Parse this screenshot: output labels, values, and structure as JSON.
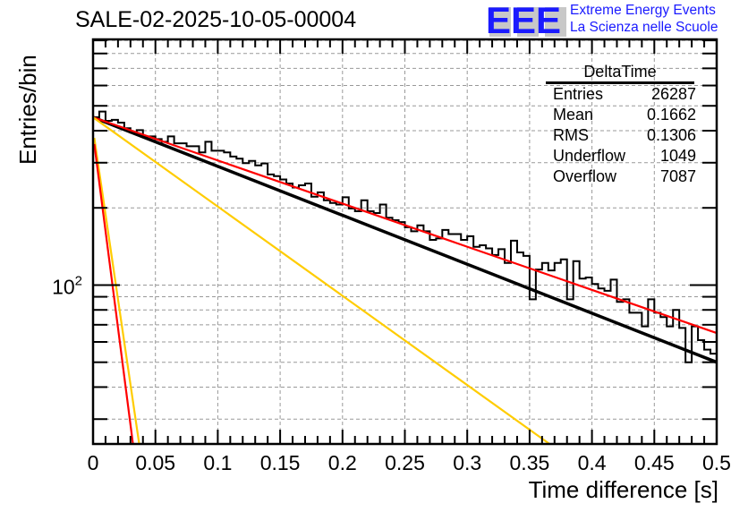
{
  "header": {
    "title": "SALE-02-2025-10-05-00004",
    "logo_letters": "EEE",
    "logo_line1": "Extreme Energy Events",
    "logo_line2": "La Scienza nelle Scuole"
  },
  "stats_box": {
    "title": "DeltaTime",
    "rows": [
      {
        "label": "Entries",
        "value": "26287"
      },
      {
        "label": "Mean",
        "value": "0.1662"
      },
      {
        "label": "RMS",
        "value": "0.1306"
      },
      {
        "label": "Underflow",
        "value": "1049"
      },
      {
        "label": "Overflow",
        "value": "7087"
      }
    ]
  },
  "colors": {
    "histogram": "#000000",
    "fit_total": "#000000",
    "fit_red": "#ff0000",
    "fit_yellow": "#ffcc00",
    "logo": "#1a1aff",
    "grid": "#999999"
  },
  "chart_data": {
    "type": "histogram",
    "title": "SALE-02-2025-10-05-00004",
    "xlabel": "Time difference [s]",
    "ylabel": "Entries/bin",
    "xlim": [
      0,
      0.5
    ],
    "ylim": [
      24,
      908
    ],
    "yscale": "log",
    "grid": true,
    "x_ticks": [
      "0",
      "0.05",
      "0.1",
      "0.15",
      "0.2",
      "0.25",
      "0.3",
      "0.35",
      "0.4",
      "0.45",
      "0.5"
    ],
    "x_tick_values": [
      0,
      0.05,
      0.1,
      0.15,
      0.2,
      0.25,
      0.3,
      0.35,
      0.4,
      0.45,
      0.5
    ],
    "y_tick_labels": [
      {
        "value": 100,
        "label": "10",
        "exp": "2"
      }
    ],
    "y_minor_ticks": [
      30,
      40,
      50,
      60,
      70,
      80,
      90,
      200,
      300,
      400,
      500,
      600,
      700,
      800,
      900
    ],
    "bin_width": 0.005,
    "bins": [
      451,
      475,
      437,
      441,
      430,
      409,
      393,
      402,
      380,
      380,
      371,
      362,
      380,
      357,
      357,
      348,
      348,
      329,
      362,
      334,
      334,
      329,
      317,
      311,
      299,
      305,
      293,
      298,
      270,
      266,
      258,
      249,
      240,
      245,
      249,
      221,
      230,
      214,
      209,
      206,
      220,
      199,
      194,
      214,
      194,
      191,
      206,
      183,
      179,
      176,
      168,
      162,
      171,
      162,
      150,
      152,
      164,
      158,
      158,
      150,
      155,
      141,
      143,
      139,
      131,
      138,
      122,
      149,
      134,
      130,
      88,
      115,
      122,
      114,
      122,
      126,
      88,
      124,
      106,
      107,
      101,
      97,
      95,
      105,
      86,
      88,
      78,
      78,
      69,
      88,
      78,
      75,
      69,
      80,
      68,
      50,
      69,
      61,
      56,
      54
    ],
    "fits": [
      {
        "name": "total-fit",
        "color": "#000000",
        "points": [
          [
            0,
            451
          ],
          [
            0.5,
            50
          ]
        ]
      },
      {
        "name": "slow-component-red",
        "color": "#ff0000",
        "points": [
          [
            0,
            451
          ],
          [
            0.5,
            65
          ]
        ]
      },
      {
        "name": "slow-component-yellow",
        "color": "#ffcc00",
        "points": [
          [
            0,
            451
          ],
          [
            0.366,
            24
          ]
        ]
      },
      {
        "name": "fast-component-yellow",
        "color": "#ffcc00",
        "points": [
          [
            0.001,
            375
          ],
          [
            0.037,
            24
          ]
        ]
      },
      {
        "name": "fast-component-red",
        "color": "#ff0000",
        "points": [
          [
            0.001,
            355
          ],
          [
            0.032,
            24
          ]
        ]
      }
    ]
  }
}
